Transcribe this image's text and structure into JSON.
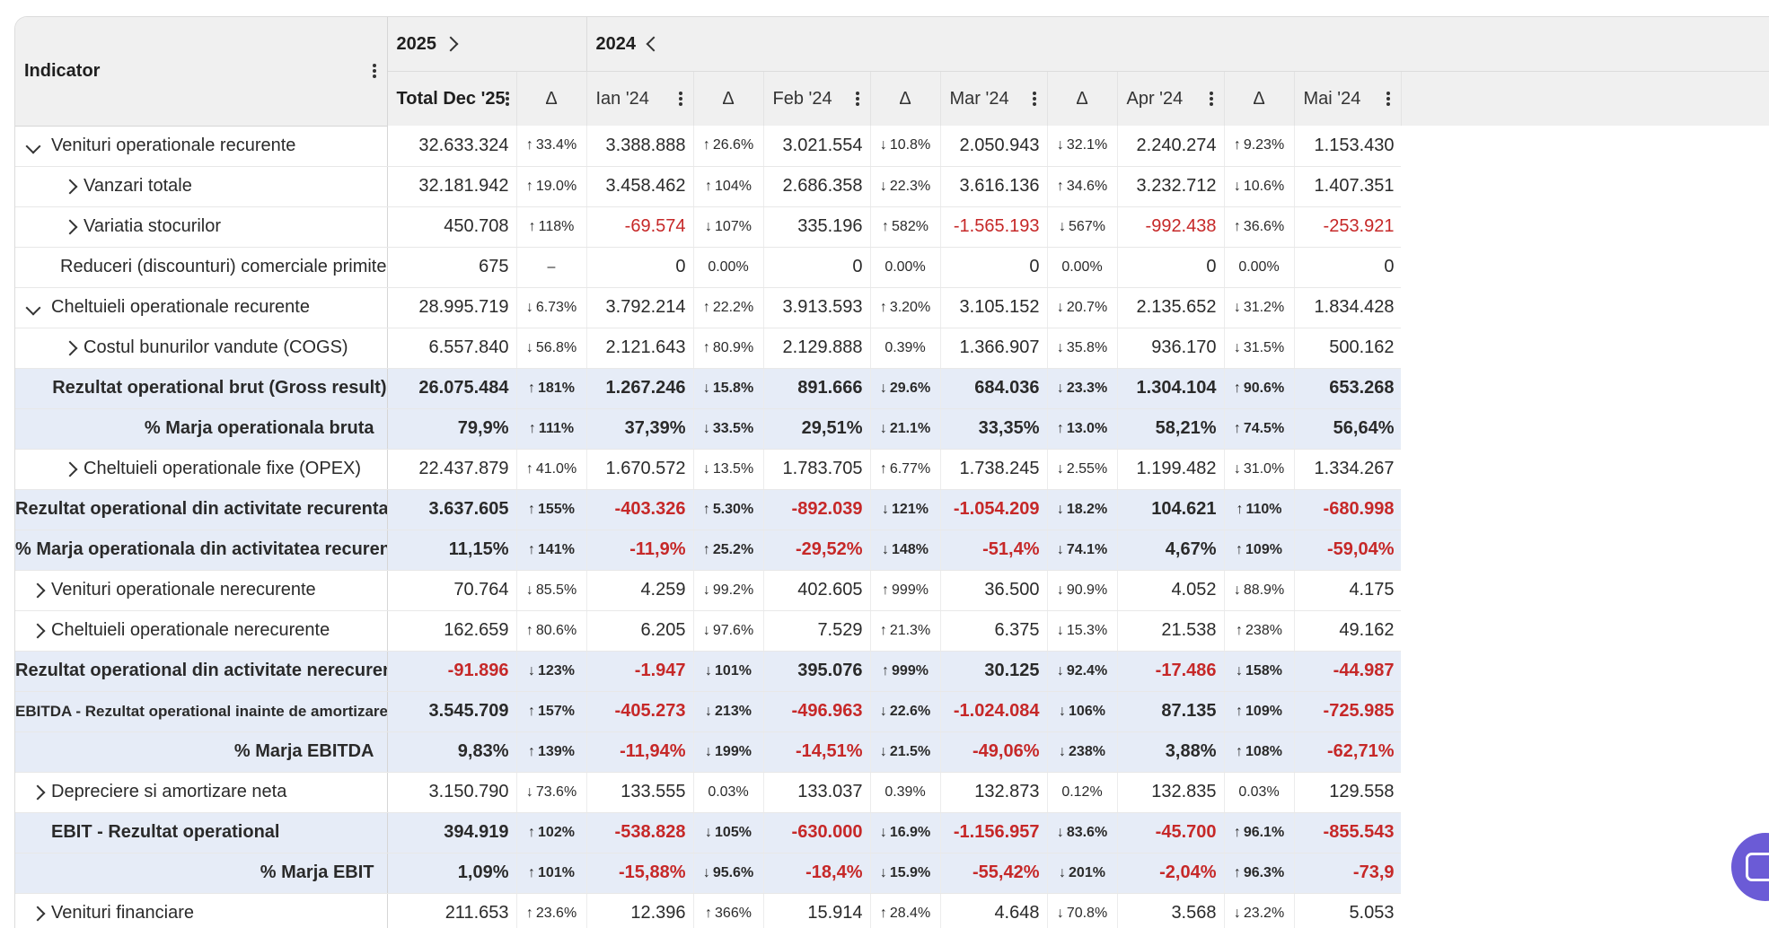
{
  "header": {
    "indicator_label": "Indicator",
    "year_2025": "2025",
    "year_2024": "2024",
    "columns": [
      "Total Dec '25",
      "Δ",
      "Ian '24",
      "Δ",
      "Feb '24",
      "Δ",
      "Mar '24",
      "Δ",
      "Apr '24",
      "Δ",
      "Mai '24"
    ]
  },
  "colors": {
    "up": "#2e7d32",
    "down": "#c62828",
    "highlight_row": "#e6ecf7",
    "header_bg": "#f0f0f0",
    "chat_bubble": "#6b5bd6"
  },
  "rows": [
    {
      "label": "Venituri operationale recurente",
      "values": [
        "32.633.324",
        "3.388.888",
        "3.021.554",
        "2.050.943",
        "2.240.274",
        "1.153.430"
      ],
      "deltas": [
        "33.4%",
        "26.6%",
        "10.8%",
        "32.1%",
        "9.23%"
      ],
      "dirs": [
        "up",
        "up",
        "down",
        "down",
        "up"
      ]
    },
    {
      "label": "Vanzari totale",
      "values": [
        "32.181.942",
        "3.458.462",
        "2.686.358",
        "3.616.136",
        "3.232.712",
        "1.407.351"
      ],
      "deltas": [
        "19.0%",
        "104%",
        "22.3%",
        "34.6%",
        "10.6%"
      ],
      "dirs": [
        "up",
        "up",
        "down",
        "up",
        "down"
      ]
    },
    {
      "label": "Variatia stocurilor",
      "values": [
        "450.708",
        "-69.574",
        "335.196",
        "-1.565.193",
        "-992.438",
        "-253.921"
      ],
      "deltas": [
        "118%",
        "107%",
        "582%",
        "567%",
        "36.6%"
      ],
      "dirs": [
        "up",
        "down",
        "up",
        "down",
        "up"
      ]
    },
    {
      "label": "Reduceri (discounturi) comerciale primite",
      "values": [
        "675",
        "0",
        "0",
        "0",
        "0",
        "0"
      ],
      "deltas": [
        "–",
        "0.00%",
        "0.00%",
        "0.00%",
        "0.00%"
      ],
      "dirs": [
        "none",
        "none",
        "none",
        "none",
        "none"
      ]
    },
    {
      "label": "Cheltuieli operationale recurente",
      "values": [
        "28.995.719",
        "3.792.214",
        "3.913.593",
        "3.105.152",
        "2.135.652",
        "1.834.428"
      ],
      "deltas": [
        "6.73%",
        "22.2%",
        "3.20%",
        "20.7%",
        "31.2%"
      ],
      "dirs": [
        "down",
        "up",
        "up",
        "down",
        "down"
      ]
    },
    {
      "label": "Costul bunurilor vandute (COGS)",
      "values": [
        "6.557.840",
        "2.121.643",
        "2.129.888",
        "1.366.907",
        "936.170",
        "500.162"
      ],
      "deltas": [
        "56.8%",
        "80.9%",
        "0.39%",
        "35.8%",
        "31.5%"
      ],
      "dirs": [
        "down",
        "up",
        "none",
        "down",
        "down"
      ]
    },
    {
      "label": "Rezultat operational brut (Gross result)",
      "values": [
        "26.075.484",
        "1.267.246",
        "891.666",
        "684.036",
        "1.304.104",
        "653.268"
      ],
      "deltas": [
        "181%",
        "15.8%",
        "29.6%",
        "23.3%",
        "90.6%"
      ],
      "dirs": [
        "up",
        "down",
        "down",
        "down",
        "up"
      ]
    },
    {
      "label": "% Marja operationala bruta",
      "values": [
        "79,9%",
        "37,39%",
        "29,51%",
        "33,35%",
        "58,21%",
        "56,64%"
      ],
      "deltas": [
        "111%",
        "33.5%",
        "21.1%",
        "13.0%",
        "74.5%"
      ],
      "dirs": [
        "up",
        "down",
        "down",
        "up",
        "up"
      ]
    },
    {
      "label": "Cheltuieli operationale fixe (OPEX)",
      "values": [
        "22.437.879",
        "1.670.572",
        "1.783.705",
        "1.738.245",
        "1.199.482",
        "1.334.267"
      ],
      "deltas": [
        "41.0%",
        "13.5%",
        "6.77%",
        "2.55%",
        "31.0%"
      ],
      "dirs": [
        "up",
        "down",
        "up",
        "down",
        "down"
      ]
    },
    {
      "label": "Rezultat operational din activitate recurenta",
      "values": [
        "3.637.605",
        "-403.326",
        "-892.039",
        "-1.054.209",
        "104.621",
        "-680.998"
      ],
      "deltas": [
        "155%",
        "5.30%",
        "121%",
        "18.2%",
        "110%"
      ],
      "dirs": [
        "up",
        "up",
        "down",
        "down",
        "up"
      ]
    },
    {
      "label": "% Marja operationala din activitatea recurenta",
      "values": [
        "11,15%",
        "-11,9%",
        "-29,52%",
        "-51,4%",
        "4,67%",
        "-59,04%"
      ],
      "deltas": [
        "141%",
        "25.2%",
        "148%",
        "74.1%",
        "109%"
      ],
      "dirs": [
        "up",
        "up",
        "down",
        "down",
        "up"
      ]
    },
    {
      "label": "Venituri operationale nerecurente",
      "values": [
        "70.764",
        "4.259",
        "402.605",
        "36.500",
        "4.052",
        "4.175"
      ],
      "deltas": [
        "85.5%",
        "99.2%",
        "999%",
        "90.9%",
        "88.9%"
      ],
      "dirs": [
        "down",
        "down",
        "up",
        "down",
        "down"
      ]
    },
    {
      "label": "Cheltuieli operationale nerecurente",
      "values": [
        "162.659",
        "6.205",
        "7.529",
        "6.375",
        "21.538",
        "49.162"
      ],
      "deltas": [
        "80.6%",
        "97.6%",
        "21.3%",
        "15.3%",
        "238%"
      ],
      "dirs": [
        "up",
        "down",
        "up",
        "down",
        "up"
      ]
    },
    {
      "label": "Rezultat operational din activitate nerecurenta",
      "values": [
        "-91.896",
        "-1.947",
        "395.076",
        "30.125",
        "-17.486",
        "-44.987"
      ],
      "deltas": [
        "123%",
        "101%",
        "999%",
        "92.4%",
        "158%"
      ],
      "dirs": [
        "down",
        "down",
        "up",
        "down",
        "down"
      ]
    },
    {
      "label": "EBITDA - Rezultat operational inainte de amortizare",
      "values": [
        "3.545.709",
        "-405.273",
        "-496.963",
        "-1.024.084",
        "87.135",
        "-725.985"
      ],
      "deltas": [
        "157%",
        "213%",
        "22.6%",
        "106%",
        "109%"
      ],
      "dirs": [
        "up",
        "down",
        "down",
        "down",
        "up"
      ]
    },
    {
      "label": "% Marja EBITDA",
      "values": [
        "9,83%",
        "-11,94%",
        "-14,51%",
        "-49,06%",
        "3,88%",
        "-62,71%"
      ],
      "deltas": [
        "139%",
        "199%",
        "21.5%",
        "238%",
        "108%"
      ],
      "dirs": [
        "up",
        "down",
        "down",
        "down",
        "up"
      ]
    },
    {
      "label": "Depreciere si amortizare neta",
      "values": [
        "3.150.790",
        "133.555",
        "133.037",
        "132.873",
        "132.835",
        "129.558"
      ],
      "deltas": [
        "73.6%",
        "0.03%",
        "0.39%",
        "0.12%",
        "0.03%"
      ],
      "dirs": [
        "down",
        "none",
        "none",
        "none",
        "none"
      ]
    },
    {
      "label": "EBIT - Rezultat operational",
      "values": [
        "394.919",
        "-538.828",
        "-630.000",
        "-1.156.957",
        "-45.700",
        "-855.543"
      ],
      "deltas": [
        "102%",
        "105%",
        "16.9%",
        "83.6%",
        "96.1%"
      ],
      "dirs": [
        "up",
        "down",
        "down",
        "down",
        "up"
      ]
    },
    {
      "label": "% Marja EBIT",
      "values": [
        "1,09%",
        "-15,88%",
        "-18,4%",
        "-55,42%",
        "-2,04%",
        "-73,9"
      ],
      "deltas": [
        "101%",
        "95.6%",
        "15.9%",
        "201%",
        "96.3%"
      ],
      "dirs": [
        "up",
        "down",
        "down",
        "down",
        "up"
      ]
    },
    {
      "label": "Venituri financiare",
      "values": [
        "211.653",
        "12.396",
        "15.914",
        "4.648",
        "3.568",
        "5.053"
      ],
      "deltas": [
        "23.6%",
        "366%",
        "28.4%",
        "70.8%",
        "23.2%"
      ],
      "dirs": [
        "up",
        "up",
        "up",
        "down",
        "down"
      ]
    }
  ]
}
